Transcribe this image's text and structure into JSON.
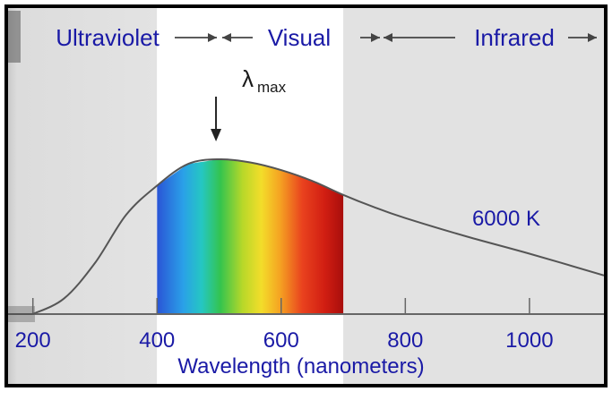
{
  "chart_data": {
    "type": "area",
    "title": "",
    "xlabel": "Wavelength (nanometers)",
    "ylabel": "",
    "xlim": [
      160,
      1120
    ],
    "ylim": [
      0,
      1
    ],
    "x_ticks": [
      200,
      400,
      600,
      800,
      1000
    ],
    "x_tick_labels": [
      "200",
      "400",
      "600",
      "800",
      "1000"
    ],
    "regions": [
      {
        "label": "Ultraviolet",
        "range": [
          160,
          400
        ]
      },
      {
        "label": "Visual",
        "range": [
          400,
          700
        ]
      },
      {
        "label": "Infrared",
        "range": [
          700,
          1120
        ]
      }
    ],
    "series": [
      {
        "name": "6000 K",
        "x": [
          200,
          250,
          300,
          350,
          400,
          450,
          500,
          550,
          600,
          650,
          700,
          750,
          800,
          900,
          1000,
          1120
        ],
        "y": [
          0.0,
          0.1,
          0.33,
          0.64,
          0.83,
          0.97,
          1.0,
          0.98,
          0.93,
          0.86,
          0.77,
          0.69,
          0.62,
          0.5,
          0.39,
          0.25
        ]
      }
    ],
    "peak_annotation": {
      "label": "λ",
      "subscript": "max",
      "x": 495
    },
    "curve_label": "6000 K",
    "colors": {
      "text": "#1a1aa6",
      "curve": "#555555",
      "visual_band": "#ffffff",
      "outer_bg": "#e2e2e2",
      "border": "#000000"
    }
  }
}
